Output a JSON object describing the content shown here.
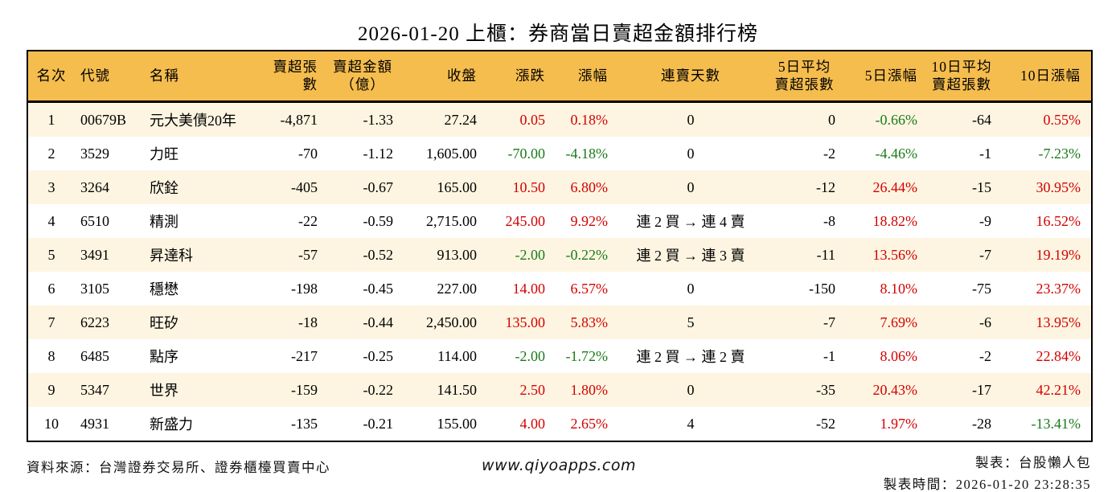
{
  "title": "2026-01-20 上櫃：券商當日賣超金額排行榜",
  "colors": {
    "header_bg": "#f5bd4e",
    "row_stripe_bg": "#fdf5e1",
    "row_bg": "#ffffff",
    "rise_red": "#d40000",
    "fall_green": "#1a7a1a",
    "table_border": "#000000"
  },
  "table": {
    "headers": [
      {
        "key": "rank",
        "label": "名次"
      },
      {
        "key": "code",
        "label": "代號"
      },
      {
        "key": "name",
        "label": "名稱"
      },
      {
        "key": "sell-volume",
        "label": "賣超張數"
      },
      {
        "key": "sell-amount",
        "label": "賣超金額",
        "sub": "（億）"
      },
      {
        "key": "close",
        "label": "收盤"
      },
      {
        "key": "change",
        "label": "漲跌"
      },
      {
        "key": "change-pct",
        "label": "漲幅"
      },
      {
        "key": "sell-streak",
        "label": "連賣天數"
      },
      {
        "key": "avg5-sell-volume",
        "label": "5日平均",
        "sub": "賣超張數"
      },
      {
        "key": "pct5",
        "label": "5日漲幅"
      },
      {
        "key": "avg10-sell-volume",
        "label": "10日平均",
        "sub": "賣超張數"
      },
      {
        "key": "pct10",
        "label": "10日漲幅"
      }
    ],
    "rows": [
      {
        "cells": [
          "1",
          "00679B",
          "元大美債20年",
          "-4,871",
          "-1.33",
          "27.24",
          "0.05",
          "0.18%",
          "0",
          "0",
          "-0.66%",
          "-64",
          "0.55%"
        ],
        "colors": [
          null,
          null,
          null,
          null,
          null,
          null,
          "red",
          "red",
          null,
          null,
          "green",
          null,
          "red"
        ]
      },
      {
        "cells": [
          "2",
          "3529",
          "力旺",
          "-70",
          "-1.12",
          "1,605.00",
          "-70.00",
          "-4.18%",
          "0",
          "-2",
          "-4.46%",
          "-1",
          "-7.23%"
        ],
        "colors": [
          null,
          null,
          null,
          null,
          null,
          null,
          "green",
          "green",
          null,
          null,
          "green",
          null,
          "green"
        ]
      },
      {
        "cells": [
          "3",
          "3264",
          "欣銓",
          "-405",
          "-0.67",
          "165.00",
          "10.50",
          "6.80%",
          "0",
          "-12",
          "26.44%",
          "-15",
          "30.95%"
        ],
        "colors": [
          null,
          null,
          null,
          null,
          null,
          null,
          "red",
          "red",
          null,
          null,
          "red",
          null,
          "red"
        ]
      },
      {
        "cells": [
          "4",
          "6510",
          "精測",
          "-22",
          "-0.59",
          "2,715.00",
          "245.00",
          "9.92%",
          "連 2 買 → 連 4 賣",
          "-8",
          "18.82%",
          "-9",
          "16.52%"
        ],
        "colors": [
          null,
          null,
          null,
          null,
          null,
          null,
          "red",
          "red",
          null,
          null,
          "red",
          null,
          "red"
        ]
      },
      {
        "cells": [
          "5",
          "3491",
          "昇達科",
          "-57",
          "-0.52",
          "913.00",
          "-2.00",
          "-0.22%",
          "連 2 買 → 連 3 賣",
          "-11",
          "13.56%",
          "-7",
          "19.19%"
        ],
        "colors": [
          null,
          null,
          null,
          null,
          null,
          null,
          "green",
          "green",
          null,
          null,
          "red",
          null,
          "red"
        ]
      },
      {
        "cells": [
          "6",
          "3105",
          "穩懋",
          "-198",
          "-0.45",
          "227.00",
          "14.00",
          "6.57%",
          "0",
          "-150",
          "8.10%",
          "-75",
          "23.37%"
        ],
        "colors": [
          null,
          null,
          null,
          null,
          null,
          null,
          "red",
          "red",
          null,
          null,
          "red",
          null,
          "red"
        ]
      },
      {
        "cells": [
          "7",
          "6223",
          "旺矽",
          "-18",
          "-0.44",
          "2,450.00",
          "135.00",
          "5.83%",
          "5",
          "-7",
          "7.69%",
          "-6",
          "13.95%"
        ],
        "colors": [
          null,
          null,
          null,
          null,
          null,
          null,
          "red",
          "red",
          null,
          null,
          "red",
          null,
          "red"
        ]
      },
      {
        "cells": [
          "8",
          "6485",
          "點序",
          "-217",
          "-0.25",
          "114.00",
          "-2.00",
          "-1.72%",
          "連 2 買 → 連 2 賣",
          "-1",
          "8.06%",
          "-2",
          "22.84%"
        ],
        "colors": [
          null,
          null,
          null,
          null,
          null,
          null,
          "green",
          "green",
          null,
          null,
          "red",
          null,
          "red"
        ]
      },
      {
        "cells": [
          "9",
          "5347",
          "世界",
          "-159",
          "-0.22",
          "141.50",
          "2.50",
          "1.80%",
          "0",
          "-35",
          "20.43%",
          "-17",
          "42.21%"
        ],
        "colors": [
          null,
          null,
          null,
          null,
          null,
          null,
          "red",
          "red",
          null,
          null,
          "red",
          null,
          "red"
        ]
      },
      {
        "cells": [
          "10",
          "4931",
          "新盛力",
          "-135",
          "-0.21",
          "155.00",
          "4.00",
          "2.65%",
          "4",
          "-52",
          "1.97%",
          "-28",
          "-13.41%"
        ],
        "colors": [
          null,
          null,
          null,
          null,
          null,
          null,
          "red",
          "red",
          null,
          null,
          "red",
          null,
          "green"
        ]
      }
    ]
  },
  "footer": {
    "source": "資料來源：台灣證券交易所、證券櫃檯買賣中心",
    "website": "www.qiyoapps.com",
    "creator": "製表：台股懶人包",
    "created_at": "製表時間：2026-01-20 23:28:35"
  }
}
